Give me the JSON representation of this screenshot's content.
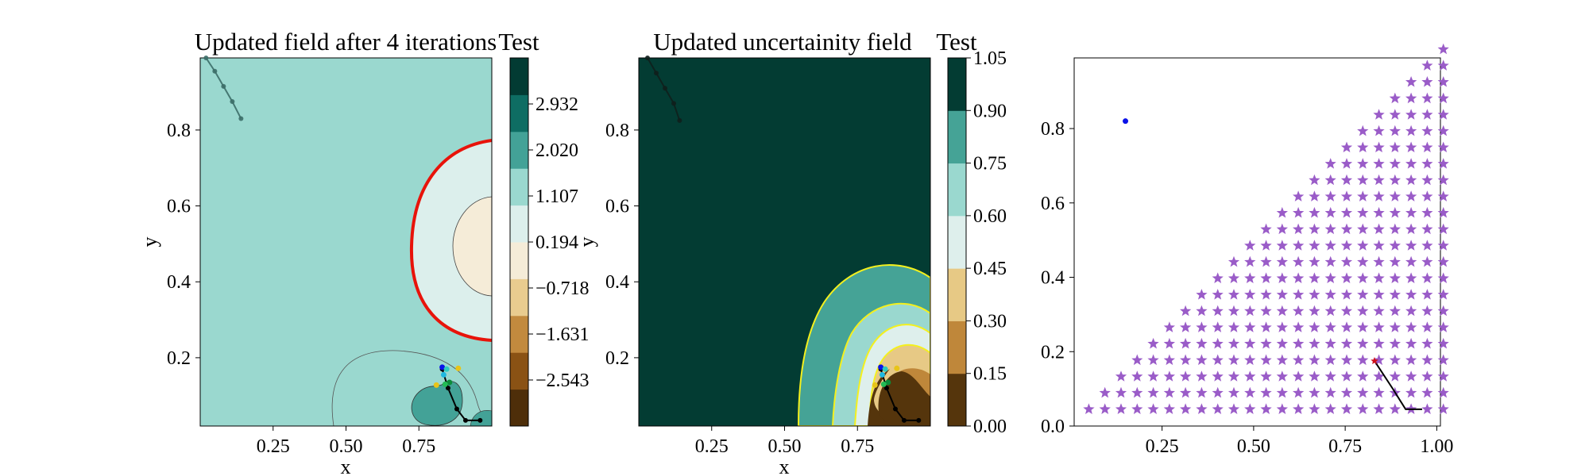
{
  "colors": {
    "field_levels": [
      "#4e2e09",
      "#8a5214",
      "#c28a3e",
      "#e9cc8f",
      "#f5ecd8",
      "#dcefec",
      "#9ad8cf",
      "#43a297",
      "#0e6d63",
      "#023b33"
    ],
    "uncert_levels": [
      "#55350c",
      "#bf873a",
      "#e7c985",
      "#deefec",
      "#9ad8cf",
      "#45a396",
      "#033c33"
    ],
    "red_contour": "#e8130a",
    "yellow_contour": "#f4f01d",
    "star": "#9a5cc8",
    "path": "#000000",
    "blue_point": "#0b12e8"
  },
  "chart_data": [
    {
      "type": "heatmap",
      "title": "Updated field after 4 iterations",
      "xlabel": "x",
      "ylabel": "y",
      "xlim": [
        0,
        1
      ],
      "ylim": [
        0.02,
        0.99
      ],
      "xticks": [
        "0.25",
        "0.50",
        "0.75"
      ],
      "yticks": [
        "0.2",
        "0.4",
        "0.6",
        "0.8"
      ],
      "colorbar": {
        "title": "Test",
        "range": [
          -3.456,
          3.845
        ],
        "ticks": [
          {
            "value": 2.932,
            "label": "2.932"
          },
          {
            "value": 2.02,
            "label": "2.020"
          },
          {
            "value": 1.107,
            "label": "1.107"
          },
          {
            "value": 0.194,
            "label": "0.194"
          },
          {
            "value": -0.718,
            "label": "−0.718"
          },
          {
            "value": -1.631,
            "label": "−1.631"
          },
          {
            "value": -2.543,
            "label": "−2.543"
          }
        ]
      },
      "path_top": [
        [
          0.02,
          0.99
        ],
        [
          0.05,
          0.955
        ],
        [
          0.08,
          0.915
        ],
        [
          0.11,
          0.875
        ],
        [
          0.14,
          0.83
        ]
      ],
      "path_bottom": [
        [
          0.83,
          0.17
        ],
        [
          0.85,
          0.12
        ],
        [
          0.88,
          0.065
        ],
        [
          0.91,
          0.035
        ],
        [
          0.96,
          0.035
        ]
      ],
      "scatter_points": [
        {
          "x": 0.83,
          "y": 0.175,
          "color": "#0b12e8"
        },
        {
          "x": 0.835,
          "y": 0.155,
          "color": "#1fb8e0"
        },
        {
          "x": 0.845,
          "y": 0.17,
          "color": "#2ec9c0"
        },
        {
          "x": 0.885,
          "y": 0.172,
          "color": "#e8c418"
        },
        {
          "x": 0.81,
          "y": 0.128,
          "color": "#e8c418"
        },
        {
          "x": 0.855,
          "y": 0.135,
          "color": "#0c8c3a"
        },
        {
          "x": 0.84,
          "y": 0.13,
          "color": "#22bb55"
        }
      ]
    },
    {
      "type": "heatmap",
      "title": "Updated uncertainity field",
      "xlabel": "x",
      "ylabel": "y",
      "xlim": [
        0,
        1
      ],
      "ylim": [
        0.02,
        0.99
      ],
      "xticks": [
        "0.25",
        "0.50",
        "0.75"
      ],
      "yticks": [
        "0.2",
        "0.4",
        "0.6",
        "0.8"
      ],
      "colorbar": {
        "title": "Test",
        "range": [
          0,
          1.05
        ],
        "ticks": [
          {
            "value": 1.05,
            "label": "1.05"
          },
          {
            "value": 0.9,
            "label": "0.90"
          },
          {
            "value": 0.75,
            "label": "0.75"
          },
          {
            "value": 0.6,
            "label": "0.60"
          },
          {
            "value": 0.45,
            "label": "0.45"
          },
          {
            "value": 0.3,
            "label": "0.30"
          },
          {
            "value": 0.15,
            "label": "0.15"
          },
          {
            "value": 0.0,
            "label": "0.00"
          }
        ]
      },
      "path_top": [
        [
          0.03,
          0.99
        ],
        [
          0.06,
          0.95
        ],
        [
          0.09,
          0.91
        ],
        [
          0.12,
          0.87
        ],
        [
          0.14,
          0.825
        ]
      ],
      "path_bottom": [
        [
          0.83,
          0.17
        ],
        [
          0.85,
          0.12
        ],
        [
          0.88,
          0.065
        ],
        [
          0.91,
          0.035
        ],
        [
          0.96,
          0.035
        ]
      ],
      "scatter_points": [
        {
          "x": 0.83,
          "y": 0.175,
          "color": "#0b12e8"
        },
        {
          "x": 0.835,
          "y": 0.155,
          "color": "#1fb8e0"
        },
        {
          "x": 0.845,
          "y": 0.17,
          "color": "#2ec9c0"
        },
        {
          "x": 0.885,
          "y": 0.172,
          "color": "#e8c418"
        },
        {
          "x": 0.81,
          "y": 0.128,
          "color": "#e8c418"
        },
        {
          "x": 0.855,
          "y": 0.135,
          "color": "#0c8c3a"
        },
        {
          "x": 0.84,
          "y": 0.13,
          "color": "#22bb55"
        }
      ]
    },
    {
      "type": "scatter",
      "title": "",
      "xlabel": "",
      "ylabel": "",
      "xlim": [
        0.01,
        1.01
      ],
      "ylim": [
        0,
        0.99
      ],
      "xticks": [
        "0.25",
        "0.50",
        "0.75",
        "1.00"
      ],
      "yticks": [
        "0.0",
        "0.2",
        "0.4",
        "0.6",
        "0.8"
      ],
      "grid_step": 0.044,
      "star_rows": 23,
      "blue_point": [
        0.15,
        0.82
      ],
      "red_star": [
        0.83,
        0.175
      ],
      "path": [
        [
          0.83,
          0.175
        ],
        [
          0.88,
          0.1
        ],
        [
          0.915,
          0.045
        ],
        [
          0.96,
          0.045
        ]
      ]
    }
  ]
}
